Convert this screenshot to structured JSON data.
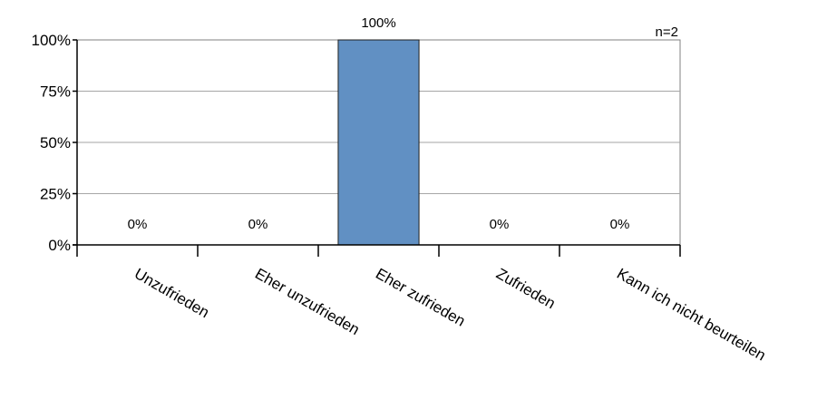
{
  "chart_data": {
    "type": "bar",
    "categories": [
      "Unzufrieden",
      "Eher unzufrieden",
      "Eher zufrieden",
      "Zufrieden",
      "Kann ich nicht beurteilen"
    ],
    "values": [
      0,
      0,
      100,
      0,
      0
    ],
    "value_labels": [
      "0%",
      "0%",
      "100%",
      "0%",
      "0%"
    ],
    "y_ticks": [
      "0%",
      "25%",
      "50%",
      "75%",
      "100%"
    ],
    "ylim": [
      0,
      100
    ],
    "sample_note": "n=2",
    "grid": true,
    "bar_color": "#6190c3",
    "title": "",
    "xlabel": "",
    "ylabel": ""
  }
}
